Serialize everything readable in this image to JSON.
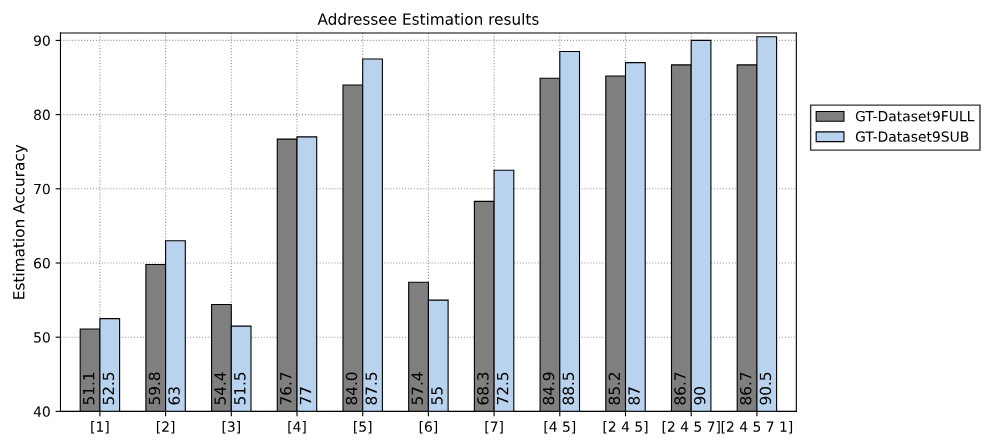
{
  "chart_data": {
    "type": "bar",
    "title": "Addressee Estimation results",
    "ylabel": "Estimation Accuracy",
    "categories": [
      "[1]",
      "[2]",
      "[3]",
      "[4]",
      "[5]",
      "[6]",
      "[7]",
      "[4 5]",
      "[2 4 5]",
      "[2 4 5 7]",
      "[2 4 5 7 1]"
    ],
    "series": [
      {
        "name": "GT-Dataset9FULL",
        "color": "#7f7f7f",
        "values": [
          51.1,
          59.8,
          54.4,
          76.7,
          84.0,
          57.4,
          68.3,
          84.9,
          85.2,
          86.7,
          86.7
        ],
        "value_labels": [
          "51.1",
          "59.8",
          "54.4",
          "76.7",
          "84.0",
          "57.4",
          "68.3",
          "84.9",
          "85.2",
          "86.7",
          "86.7"
        ]
      },
      {
        "name": "GT-Dataset9SUB",
        "color": "#b9d3ee",
        "values": [
          52.5,
          63,
          51.5,
          77,
          87.5,
          55,
          72.5,
          88.5,
          87,
          90,
          90.5
        ],
        "value_labels": [
          "52.5",
          "63",
          "51.5",
          "77",
          "87.5",
          "55",
          "72.5",
          "88.5",
          "87",
          "90",
          "90.5"
        ]
      }
    ],
    "ylim": [
      40,
      91
    ],
    "yticks": [
      40,
      50,
      60,
      70,
      80,
      90
    ],
    "grid": true,
    "legend": "right"
  }
}
